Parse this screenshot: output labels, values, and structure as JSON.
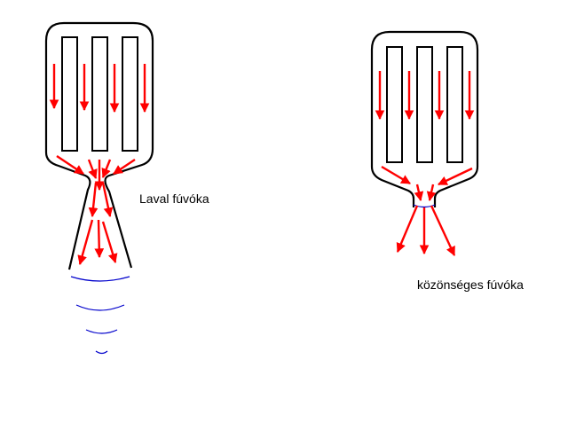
{
  "labels": {
    "laval": "Laval fúvóka",
    "common": "közönséges fúvóka"
  },
  "colors": {
    "outline": "#000000",
    "flow_arrow": "#ff0000",
    "shock_wave": "#0000cc",
    "background": "#ffffff"
  }
}
